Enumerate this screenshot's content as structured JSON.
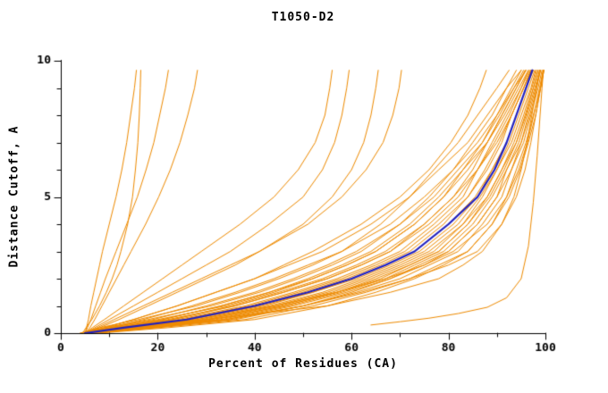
{
  "chart_data": {
    "type": "line",
    "title": "T1050-D2",
    "xlabel": "Percent of Residues (CA)",
    "ylabel": "Distance Cutoff, A",
    "xlim": [
      0,
      100
    ],
    "ylim": [
      0,
      10
    ],
    "x_major_ticks": [
      0,
      20,
      40,
      60,
      80,
      100
    ],
    "x_minor_ticks": [
      10,
      30,
      50,
      70,
      90
    ],
    "y_major_ticks": [
      0,
      5,
      10
    ],
    "y_minor_ticks": [
      1,
      2,
      3,
      4,
      6,
      7,
      8,
      9
    ],
    "grid": false,
    "colors": {
      "models": "#EE8A00",
      "highlight": "#2020C0",
      "axis": "#000000",
      "text": "#000000",
      "background": "#FFFFFF"
    },
    "series": {
      "y_samples": [
        0,
        0.2,
        0.5,
        1,
        1.5,
        2,
        2.5,
        3,
        4,
        5,
        6,
        7,
        8,
        9,
        9.65
      ],
      "models_x": [
        [
          5,
          5.3,
          5.7,
          6.2,
          6.8,
          7.4,
          8,
          8.6,
          10,
          11.4,
          12.6,
          13.6,
          14.4,
          15.2,
          15.6
        ],
        [
          5,
          5.5,
          6.2,
          7.2,
          8.2,
          9.2,
          10.3,
          11.4,
          13.6,
          15.8,
          17.6,
          19.2,
          20.4,
          21.6,
          22.2
        ],
        [
          5,
          6,
          7,
          8.5,
          10,
          11.5,
          13,
          14.5,
          17.5,
          20.2,
          22.6,
          24.6,
          26.2,
          27.6,
          28.2
        ],
        [
          4.5,
          5.2,
          6.4,
          8,
          9.4,
          10.6,
          11.6,
          12.4,
          13.8,
          14.8,
          15.4,
          15.9,
          16.2,
          16.4,
          16.5
        ],
        [
          5,
          6.5,
          9,
          13,
          17,
          21,
          25,
          29,
          37,
          44,
          49,
          52.5,
          54.5,
          55.5,
          56
        ],
        [
          5,
          7,
          10,
          15,
          20,
          25,
          30,
          35,
          43,
          50,
          54,
          56.5,
          58,
          59,
          59.5
        ],
        [
          5,
          8,
          12,
          18,
          24,
          30,
          36,
          41,
          50,
          56,
          60,
          62.5,
          64,
          65,
          65.5
        ],
        [
          5,
          7.5,
          11,
          17,
          23,
          29,
          35,
          41,
          51,
          58,
          63,
          66.5,
          68.5,
          69.8,
          70.3
        ],
        [
          5,
          9,
          15,
          24,
          32,
          40,
          46,
          52,
          62,
          70,
          76,
          80.5,
          84,
          86.5,
          87.8
        ],
        [
          4,
          8,
          16,
          28,
          37,
          45,
          52,
          58,
          66,
          72,
          77,
          82,
          86,
          90,
          92.5
        ],
        [
          4,
          9,
          18,
          31,
          41,
          49,
          56,
          62,
          70,
          76,
          81,
          85,
          89,
          92,
          94
        ],
        [
          5,
          10,
          20,
          34,
          44,
          52,
          59,
          65,
          73,
          79,
          83,
          87,
          90,
          93,
          95
        ],
        [
          5,
          11,
          22,
          36,
          46,
          55,
          62,
          68,
          75,
          81,
          85,
          88,
          91,
          94,
          96
        ],
        [
          5,
          12,
          24,
          38,
          48,
          57,
          64,
          70,
          77,
          83,
          86,
          89,
          92,
          95,
          96.5
        ],
        [
          5,
          13,
          26,
          40,
          50,
          59,
          66,
          72,
          79,
          84,
          88,
          91,
          93,
          95.5,
          97
        ],
        [
          6,
          14,
          28,
          42,
          52,
          61,
          68,
          74,
          81,
          86,
          89,
          92,
          94,
          96,
          97.5
        ],
        [
          6,
          15,
          30,
          44,
          55,
          63,
          70,
          76,
          83,
          87,
          90,
          93,
          95,
          97,
          98
        ],
        [
          6,
          16,
          32,
          46,
          57,
          66,
          72,
          78,
          84,
          88,
          91,
          94,
          96,
          97.5,
          98.5
        ],
        [
          6,
          17,
          34,
          48,
          59,
          68,
          74,
          80,
          86,
          90,
          92,
          95,
          96.5,
          98,
          99
        ],
        [
          7,
          18,
          36,
          50,
          61,
          70,
          76,
          82,
          87,
          91,
          93,
          95.5,
          97,
          98.5,
          99.3
        ],
        [
          7,
          20,
          38,
          52,
          63,
          72,
          78,
          84,
          89,
          92,
          94,
          96,
          97.5,
          99,
          99.6
        ],
        [
          5,
          9,
          15,
          24,
          32,
          40,
          47,
          54,
          64,
          72,
          78,
          84,
          88,
          92,
          95
        ],
        [
          5,
          10,
          17,
          27,
          36,
          44,
          51,
          58,
          68,
          75,
          81,
          86,
          90,
          93.5,
          96
        ],
        [
          6,
          12,
          21,
          33,
          43,
          51,
          58,
          64,
          72,
          78,
          83,
          88,
          91.5,
          94.5,
          96.5
        ],
        [
          6,
          13,
          23,
          35,
          45,
          54,
          61,
          67,
          75,
          81,
          86,
          90,
          93,
          95.5,
          97.2
        ],
        [
          7,
          16,
          30,
          45,
          56,
          64,
          71,
          77,
          83,
          88,
          91,
          93.5,
          95.5,
          97.2,
          98.2
        ],
        [
          7,
          19,
          35,
          50,
          60,
          68,
          75,
          80,
          86,
          90,
          93,
          95,
          96.8,
          98.2,
          99
        ],
        [
          8,
          22,
          40,
          55,
          65,
          73,
          79,
          84,
          89,
          92.5,
          94.8,
          96.5,
          98,
          99,
          99.7
        ],
        [
          6,
          18,
          34,
          50,
          62,
          72,
          80,
          86,
          91,
          94,
          95.8,
          97,
          98,
          99,
          99.7
        ],
        [
          5,
          14,
          28,
          44,
          57,
          67,
          75,
          81,
          88,
          92,
          94.5,
          96.3,
          97.6,
          98.8,
          99.5
        ],
        [
          6,
          14,
          30,
          55,
          68,
          78,
          83,
          87,
          91,
          93.5,
          95,
          96.2,
          97.2,
          98.2,
          98.8
        ],
        [
          5,
          11,
          21,
          33,
          43,
          52,
          59,
          65,
          73,
          79,
          84,
          88,
          91,
          94,
          95.8
        ],
        [
          5,
          12,
          23,
          36,
          46,
          55,
          62,
          68,
          76,
          82,
          86,
          89.5,
          92.5,
          95,
          96.8
        ],
        [
          6,
          13,
          25,
          39,
          49,
          58,
          65,
          71,
          78,
          84,
          87.5,
          90.5,
          93,
          95.5,
          97
        ],
        [
          6,
          15,
          29,
          43,
          54,
          62,
          69,
          75,
          82,
          86.5,
          90,
          92.5,
          94.5,
          96.5,
          97.8
        ],
        [
          7,
          17,
          33,
          47,
          58,
          67,
          73,
          79,
          85,
          89,
          92,
          94.5,
          96.2,
          97.8,
          98.8
        ],
        [
          5,
          10,
          19,
          30,
          40,
          48,
          55,
          61,
          70,
          77,
          82,
          87,
          90.5,
          93.5,
          95.5
        ],
        [
          6,
          14,
          27,
          41,
          52,
          60,
          67,
          73,
          80,
          85.5,
          89,
          92,
          94,
          96,
          97.4
        ],
        [
          7,
          16,
          31,
          46,
          57,
          65,
          72,
          78,
          84,
          88.5,
          91.5,
          94,
          95.8,
          97.5,
          98.5
        ]
      ],
      "models_xy": [
        [
          [
            64,
            0.3
          ],
          [
            70,
            0.42
          ],
          [
            76,
            0.55
          ],
          [
            82,
            0.72
          ],
          [
            88,
            0.95
          ],
          [
            92,
            1.3
          ],
          [
            95,
            2
          ],
          [
            96.5,
            3.2
          ],
          [
            97.5,
            4.8
          ],
          [
            98.3,
            6.5
          ],
          [
            98.9,
            8
          ],
          [
            99.3,
            9
          ],
          [
            99.6,
            9.65
          ]
        ]
      ],
      "highlight_x": [
        5,
        13,
        26,
        40,
        51,
        60,
        67,
        73,
        80,
        86,
        89.5,
        92,
        94,
        96,
        97.3
      ]
    }
  }
}
